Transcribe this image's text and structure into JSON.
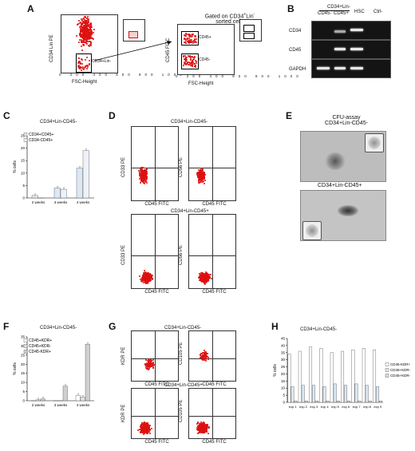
{
  "panels": {
    "A": {
      "letter": "A",
      "gated_title_line1": "Gated on CD34",
      "gated_title_line1_sup": "+",
      "gated_title_line1_end": "Lin",
      "gated_title_line1_sup2": "-",
      "gated_title_line2": "sorted cells",
      "plot1": {
        "ylabel": "CD34 Lin PE",
        "xlabel": "FSC-Height",
        "gate_label": "CD34+Lin-",
        "xticks": [
          "0",
          "200",
          "400",
          "600",
          "800",
          "1000"
        ]
      },
      "plot2": {
        "ylabel": "CD45 FITC",
        "xlabel": "FSC-Height",
        "gate_top": "CD45+",
        "gate_bottom": "CD45-",
        "xticks": [
          "0",
          "200",
          "400",
          "600",
          "800",
          "1000"
        ]
      }
    },
    "B": {
      "letter": "B",
      "header_group": "CD34+Lin-",
      "col1": "CD45-",
      "col2": "CD45+",
      "col3": "HSC",
      "col4": "Ctrl-",
      "rows": [
        "CD34",
        "CD45",
        "GAPDH"
      ]
    },
    "C": {
      "letter": "C",
      "title": "CD34+Lin-CD45-",
      "ylabel": "% cells",
      "legend": [
        "CD34+CD45+",
        "CD34-CD45+"
      ],
      "yticks": [
        "0",
        "5",
        "10",
        "15",
        "20",
        "25"
      ],
      "categories": [
        "2 weeks",
        "3 weeks",
        "4 weeks"
      ]
    },
    "D": {
      "letter": "D",
      "title_top": "CD34+Lin-CD45-",
      "title_bottom": "CD34+Lin-CD45+",
      "xlabel": "CD45 FITC",
      "ylabels": [
        "CD33 PE",
        "CD56 PE",
        "CD33 PE",
        "CD56 PE"
      ]
    },
    "E": {
      "letter": "E",
      "title_line1": "CFU-assay",
      "title_line2": "CD34+Lin-CD45-",
      "title_bottom": "CD34+Lin-CD45+"
    },
    "F": {
      "letter": "F",
      "title": "CD34+Lin-CD45-",
      "ylabel": "% cells",
      "legend": [
        "CD45+KDR+",
        "CD45+KDR-",
        "CD45-KDR+"
      ],
      "yticks": [
        "0",
        "5",
        "10",
        "15",
        "20",
        "25",
        "30",
        "35"
      ],
      "categories": [
        "2 weeks",
        "3 weeks",
        "4 weeks"
      ]
    },
    "G": {
      "letter": "G",
      "title_top": "CD34+Lin-CD45-",
      "title_bottom": "CD34+Lin-CD45+",
      "xlabel": "CD45 FITC",
      "ylabels": [
        "KDR PE",
        "CD105 PE",
        "KDR PE",
        "CD105 PE"
      ]
    },
    "H": {
      "letter": "H",
      "title": "CD34+Lin-CD45-",
      "ylabel": "% cells",
      "legend": [
        "CD45-KDR+",
        "CD45+KDR-",
        "CD45+KDR-"
      ],
      "yticks": [
        "0",
        "5",
        "10",
        "15",
        "20",
        "25",
        "30",
        "35",
        "40",
        "45"
      ],
      "categories": [
        "exp 1",
        "exp 2",
        "exp 3",
        "exp 4",
        "exp 5",
        "exp 6",
        "exp 7",
        "exp 8",
        "exp 9"
      ]
    }
  },
  "colors": {
    "bar_light": "#dce8f5",
    "bar_gray": "#cfcfcf",
    "dots": "#d11111"
  },
  "chart_data": [
    {
      "type": "bar",
      "title": "CD34+Lin-CD45-",
      "categories": [
        "2 weeks",
        "3 weeks",
        "4 weeks"
      ],
      "ylabel": "% cells",
      "ylim": [
        0,
        25
      ],
      "series": [
        {
          "name": "CD34+CD45+",
          "values": [
            1,
            4,
            12
          ]
        },
        {
          "name": "CD34-CD45+",
          "values": [
            0,
            3.5,
            19
          ]
        }
      ]
    },
    {
      "type": "bar",
      "title": "CD34+Lin-CD45-",
      "categories": [
        "2 weeks",
        "3 weeks",
        "4 weeks"
      ],
      "ylabel": "% cells",
      "ylim": [
        0,
        35
      ],
      "series": [
        {
          "name": "CD45+KDR+",
          "values": [
            0,
            0,
            3
          ]
        },
        {
          "name": "CD45+KDR-",
          "values": [
            0.5,
            0,
            2
          ]
        },
        {
          "name": "CD45-KDR+",
          "values": [
            1,
            8,
            31
          ]
        }
      ]
    },
    {
      "type": "bar",
      "title": "CD34+Lin-CD45-",
      "categories": [
        "exp 1",
        "exp 2",
        "exp 3",
        "exp 4",
        "exp 5",
        "exp 6",
        "exp 7",
        "exp 8",
        "exp 9"
      ],
      "ylabel": "% cells",
      "ylim": [
        0,
        45
      ],
      "series": [
        {
          "name": "CD45-KDR+",
          "values": [
            34,
            36,
            39,
            38,
            35,
            36,
            37,
            38,
            37
          ]
        },
        {
          "name": "CD45+KDR-",
          "values": [
            11,
            12,
            12,
            11,
            13,
            12,
            13,
            12,
            11
          ]
        },
        {
          "name": "CD45+KDR-",
          "values": [
            1,
            1,
            1,
            1,
            1,
            1,
            1,
            1,
            1
          ]
        }
      ]
    }
  ]
}
